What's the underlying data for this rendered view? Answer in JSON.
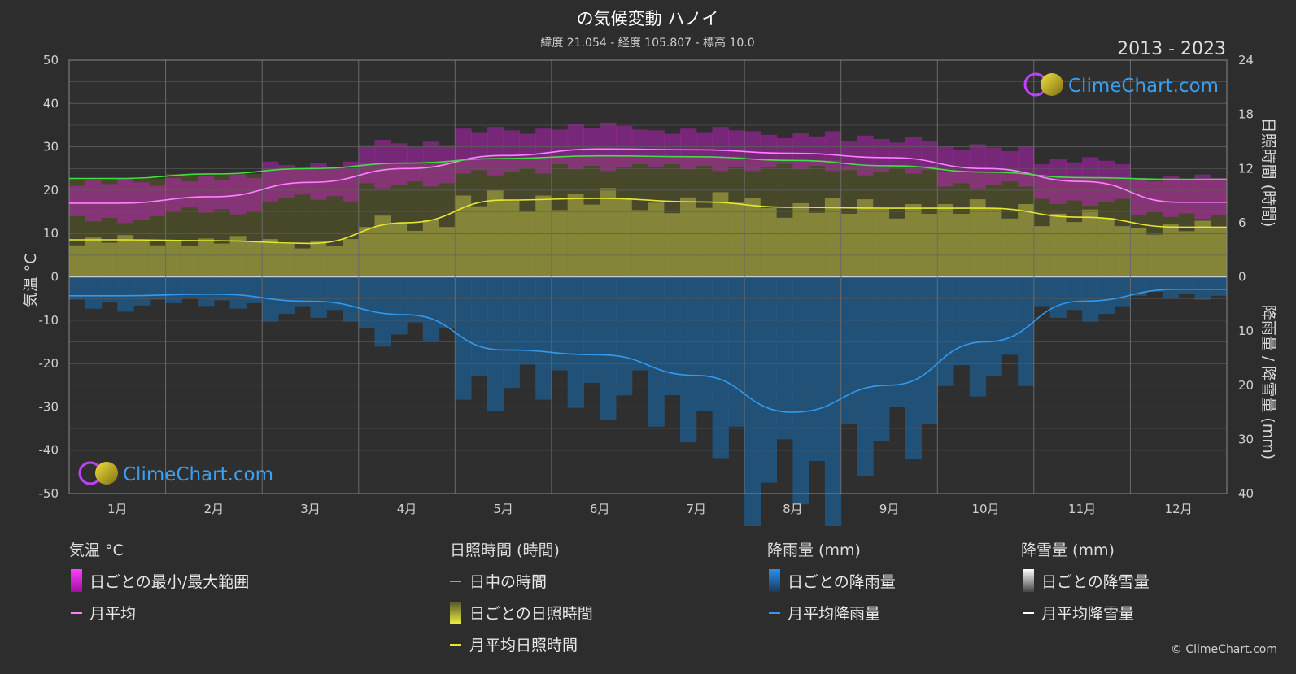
{
  "header": {
    "title": "の気候変動 ハノイ",
    "subtitle": "緯度 21.054 - 経度 105.807 - 標高 10.0",
    "period": "2013 - 2023"
  },
  "brand": {
    "logo_text": "ClimeChart.com",
    "copyright": "© ClimeChart.com"
  },
  "axes": {
    "left_title": "気温 °C",
    "right_top_title": "日照時間 (時間)",
    "right_bottom_title": "降雨量 / 降雪量 (mm)"
  },
  "chart_data": {
    "type": "area",
    "categories": [
      "1月",
      "2月",
      "3月",
      "4月",
      "5月",
      "6月",
      "7月",
      "8月",
      "9月",
      "10月",
      "11月",
      "12月"
    ],
    "left_axis": {
      "label": "気温 °C",
      "range": [
        -50,
        50
      ],
      "ticks": [
        "50",
        "40",
        "30",
        "20",
        "10",
        "0",
        "-10",
        "-20",
        "-30",
        "-40",
        "-50"
      ]
    },
    "right_axis_top": {
      "label": "日照時間 (時間)",
      "range": [
        0,
        24
      ],
      "ticks": [
        "24",
        "18",
        "12",
        "6",
        "0"
      ]
    },
    "right_axis_bottom": {
      "label": "降雨量 / 降雪量 (mm)",
      "range": [
        0,
        40
      ],
      "ticks": [
        "10",
        "20",
        "30",
        "40"
      ]
    },
    "series": [
      {
        "name": "月平均",
        "axis": "temperature",
        "color": "#ff80ff",
        "values": [
          17.0,
          18.5,
          21.8,
          25.0,
          28.0,
          29.5,
          29.3,
          28.5,
          27.5,
          25.0,
          22.0,
          17.2
        ]
      },
      {
        "name": "日中の時間",
        "axis": "sunshine",
        "color": "#44dd44",
        "values": [
          10.9,
          11.4,
          12.0,
          12.6,
          13.1,
          13.4,
          13.3,
          12.9,
          12.3,
          11.6,
          11.0,
          10.8
        ]
      },
      {
        "name": "月平均日照時間",
        "axis": "sunshine",
        "color": "#e6e630",
        "values": [
          4.1,
          4.0,
          3.7,
          6.0,
          8.5,
          8.7,
          8.3,
          7.7,
          7.6,
          7.6,
          6.6,
          5.5
        ]
      },
      {
        "name": "月平均降雨量",
        "axis": "rain",
        "color": "#3399ee",
        "values": [
          3.5,
          3.2,
          4.5,
          7.0,
          13.5,
          14.4,
          18.2,
          25.0,
          20.0,
          12.0,
          4.5,
          2.3
        ]
      },
      {
        "name": "月平均降雪量",
        "axis": "snow",
        "color": "#ffffff",
        "values": [
          0,
          0,
          0,
          0,
          0,
          0,
          0,
          0,
          0,
          0,
          0,
          0
        ]
      }
    ],
    "daily_temperature_range": {
      "min": [
        14,
        16,
        19,
        22,
        25,
        26,
        26,
        26,
        25,
        22,
        18,
        15
      ],
      "max": [
        21,
        22,
        25,
        30,
        33,
        34,
        33,
        32,
        31,
        29,
        26,
        22
      ]
    },
    "grid": true
  },
  "legend": {
    "groups": [
      {
        "title": "気温 °C",
        "items": [
          {
            "label": "日ごとの最小/最大範囲",
            "swatch": "magenta-bar"
          },
          {
            "label": "月平均",
            "swatch": "pink-line"
          }
        ]
      },
      {
        "title": "日照時間 (時間)",
        "items": [
          {
            "label": "日中の時間",
            "swatch": "green-line"
          },
          {
            "label": "日ごとの日照時間",
            "swatch": "yellow-bar"
          },
          {
            "label": "月平均日照時間",
            "swatch": "yellow-line"
          }
        ]
      },
      {
        "title": "降雨量 (mm)",
        "items": [
          {
            "label": "日ごとの降雨量",
            "swatch": "blue-bar"
          },
          {
            "label": "月平均降雨量",
            "swatch": "blue-line"
          }
        ]
      },
      {
        "title": "降雪量 (mm)",
        "items": [
          {
            "label": "日ごとの降雪量",
            "swatch": "white-bar"
          },
          {
            "label": "月平均降雪量",
            "swatch": "white-line"
          }
        ]
      }
    ]
  },
  "colors": {
    "background": "#2d2d2d",
    "temp_range": "#d020d0",
    "temp_avg": "#ff80ff",
    "daylight": "#44dd44",
    "sunshine_fill": "#9a9a40",
    "sunshine_avg": "#e6e630",
    "rain_fill": "#1e5a8a",
    "rain_avg": "#3399ee"
  }
}
